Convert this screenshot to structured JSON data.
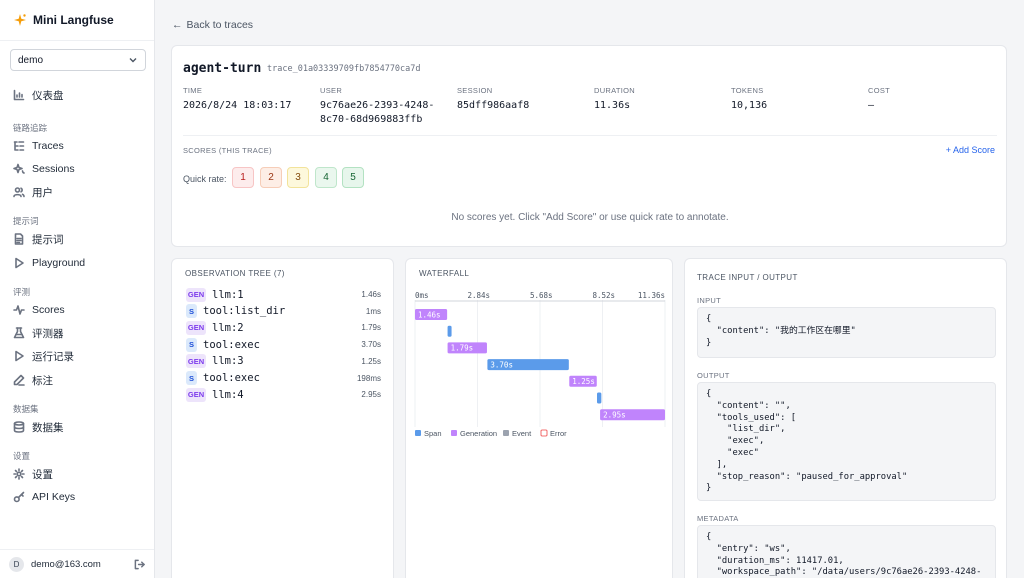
{
  "app": {
    "title": "Mini Langfuse"
  },
  "project": {
    "selected": "demo"
  },
  "sidebar": {
    "dashboard": "仪表盘",
    "section_tracing": "链路追踪",
    "traces": "Traces",
    "sessions": "Sessions",
    "users": "用户",
    "section_prompts": "提示词",
    "prompts": "提示词",
    "playground": "Playground",
    "section_eval": "评测",
    "scores": "Scores",
    "evaluators": "评测器",
    "runs": "运行记录",
    "annotation": "标注",
    "section_datasets": "数据集",
    "datasets": "数据集",
    "section_settings": "设置",
    "settings": "设置",
    "api_keys": "API Keys"
  },
  "user": {
    "initial": "D",
    "email": "demo@163.com"
  },
  "back_link": "Back to traces",
  "trace": {
    "name": "agent-turn",
    "id": "trace_01a03339709fb7854770ca7d",
    "meta": {
      "time_label": "TIME",
      "time": "2026/8/24 18:03:17",
      "user_label": "USER",
      "user_line1": "9c76ae26-2393-4248-",
      "user_line2": "8c70-68d969883ffb",
      "session_label": "SESSION",
      "session": "85dff986aaf8",
      "duration_label": "DURATION",
      "duration": "11.36s",
      "tokens_label": "TOKENS",
      "tokens": "10,136",
      "cost_label": "COST",
      "cost": "–"
    }
  },
  "scores": {
    "title": "SCORES (THIS TRACE)",
    "add_label": "+ Add Score",
    "quick_rate_label": "Quick rate:",
    "rates": [
      "1",
      "2",
      "3",
      "4",
      "5"
    ],
    "empty": "No scores yet. Click \"Add Score\" or use quick rate to annotate."
  },
  "observation_tree": {
    "title": "OBSERVATION TREE (7)",
    "items": [
      {
        "tag": "GEN",
        "name": "llm:1",
        "duration": "1.46s"
      },
      {
        "tag": "S",
        "name": "tool:list_dir",
        "duration": "1ms"
      },
      {
        "tag": "GEN",
        "name": "llm:2",
        "duration": "1.79s"
      },
      {
        "tag": "S",
        "name": "tool:exec",
        "duration": "3.70s"
      },
      {
        "tag": "GEN",
        "name": "llm:3",
        "duration": "1.25s"
      },
      {
        "tag": "S",
        "name": "tool:exec",
        "duration": "198ms"
      },
      {
        "tag": "GEN",
        "name": "llm:4",
        "duration": "2.95s"
      }
    ]
  },
  "waterfall": {
    "title": "WATERFALL",
    "axis_labels": [
      "0ms",
      "2.84s",
      "5.68s",
      "8.52s",
      "11.36s"
    ],
    "total": 11.36,
    "bars": [
      {
        "type": "generation",
        "start": 0,
        "duration": 1.46,
        "label": "1.46s"
      },
      {
        "type": "span",
        "start": 1.48,
        "duration": 0.001,
        "label": ""
      },
      {
        "type": "generation",
        "start": 1.48,
        "duration": 1.79,
        "label": "1.79s"
      },
      {
        "type": "span",
        "start": 3.29,
        "duration": 3.7,
        "label": "3.70s"
      },
      {
        "type": "generation",
        "start": 7.01,
        "duration": 1.25,
        "label": "1.25s"
      },
      {
        "type": "span",
        "start": 8.27,
        "duration": 0.198,
        "label": ""
      },
      {
        "type": "generation",
        "start": 8.41,
        "duration": 2.95,
        "label": "2.95s"
      }
    ],
    "legend": [
      {
        "name": "Span",
        "color": "#5b9bea"
      },
      {
        "name": "Generation",
        "color": "#c084fc"
      },
      {
        "name": "Event",
        "color": "#9ca3af"
      },
      {
        "name": "Error",
        "color": "#ef4444"
      }
    ]
  },
  "io": {
    "title": "TRACE INPUT / OUTPUT",
    "input_label": "INPUT",
    "input": "{\n  \"content\": \"我的工作区在哪里\"\n}",
    "output_label": "OUTPUT",
    "output": "{\n  \"content\": \"\",\n  \"tools_used\": [\n    \"list_dir\",\n    \"exec\",\n    \"exec\"\n  ],\n  \"stop_reason\": \"paused_for_approval\"\n}",
    "metadata_label": "METADATA",
    "metadata": "{\n  \"entry\": \"ws\",\n  \"duration_ms\": 11417.01,\n  \"workspace_path\": \"/data/users/9c76ae26-2393-4248-"
  }
}
